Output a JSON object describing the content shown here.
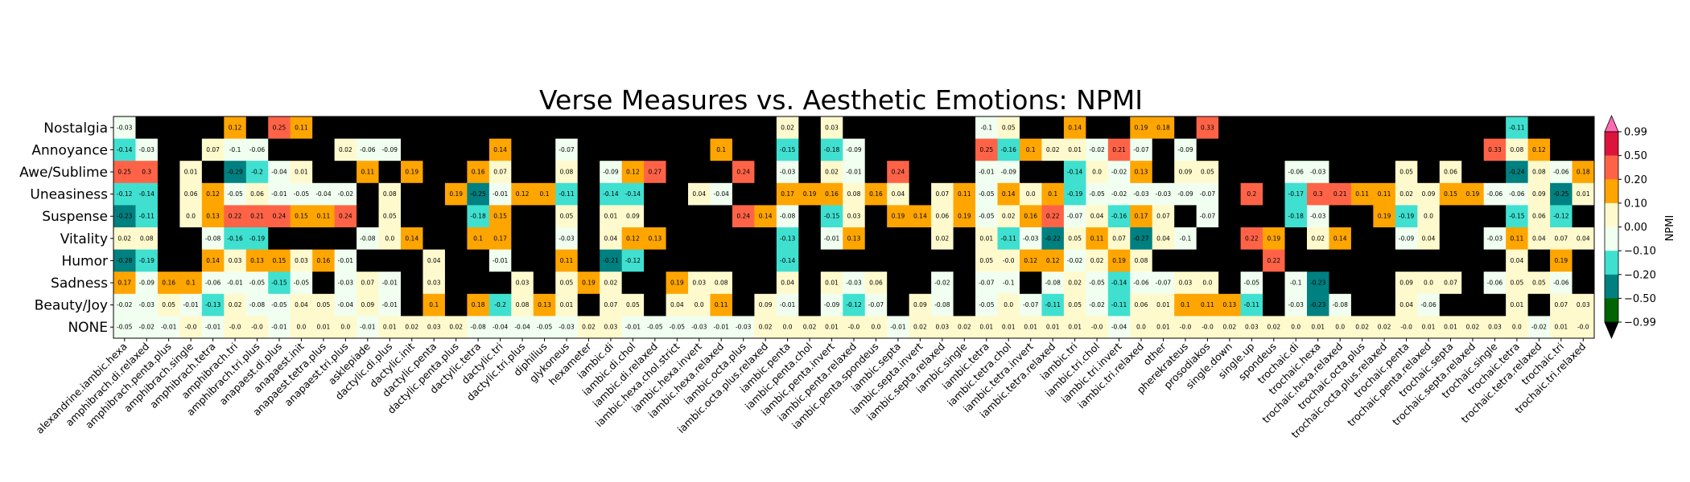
{
  "chart_data": {
    "type": "heatmap",
    "title": "Verse Measures vs. Aesthetic Emotions: NPMI",
    "colorbar_label": "NPMI",
    "colorbar_ticks": [
      "0.99",
      "0.50",
      "0.20",
      "0.10",
      "0.00",
      "−0.10",
      "−0.20",
      "−0.50",
      "−0.99"
    ],
    "colorbar_bounds": [
      -0.99,
      -0.5,
      -0.2,
      -0.1,
      0.0,
      0.1,
      0.2,
      0.5,
      0.99
    ],
    "colorbar_colors": [
      "#006400",
      "#008080",
      "#40E0D0",
      "#F0FFF0",
      "#FFFACD",
      "#FFA500",
      "#FF6347",
      "#DC143C"
    ],
    "colorbar_extend_colors": {
      "under": "#000000",
      "over": "#FF69B4"
    },
    "missing_color": "#000000",
    "rows": [
      "Nostalgia",
      "Annoyance",
      "Awe/Sublime",
      "Uneasiness",
      "Suspense",
      "Vitality",
      "Humor",
      "Sadness",
      "Beauty/Joy",
      "NONE"
    ],
    "columns": [
      "alexandrine.iambic.hexa",
      "amphibrach.di.relaxed",
      "amphibrach.penta.plus",
      "amphibrach.single",
      "amphibrach.tetra",
      "amphibrach.tri",
      "amphibrach.tri.plus",
      "anapaest.di.plus",
      "anapaest.init",
      "anapaest.tetra.plus",
      "anapaest.tri.plus",
      "asklepiade",
      "dactylic.di.plus",
      "dactylic.init",
      "dactylic.penta",
      "dactylic.penta.plus",
      "dactylic.tetra",
      "dactylic.tri",
      "dactylic.tri.plus",
      "diphilius",
      "glykoneus",
      "hexameter",
      "iambic.di",
      "iambic.di.chol",
      "iambic.di.relaxed",
      "iambic.hexa.chol.strict",
      "iambic.hexa.invert",
      "iambic.hexa.relaxed",
      "iambic.octa.plus",
      "iambic.octa.plus.relaxed",
      "iambic.penta",
      "iambic.penta.chol",
      "iambic.penta.invert",
      "iambic.penta.relaxed",
      "iambic.penta.spondeus",
      "iambic.septa",
      "iambic.septa.invert",
      "iambic.septa.relaxed",
      "iambic.single",
      "iambic.tetra",
      "iambic.tetra.chol",
      "iambic.tetra.invert",
      "iambic.tetra.relaxed",
      "iambic.tri",
      "iambic.tri.chol",
      "iambic.tri.invert",
      "iambic.tri.relaxed",
      "other",
      "pherekrateus",
      "prosodiakos",
      "single.down",
      "single.up",
      "spondeus",
      "trochaic.di",
      "trochaic.hexa",
      "trochaic.hexa.relaxed",
      "trochaic.octa.plus",
      "trochaic.octa.plus.relaxed",
      "trochaic.penta",
      "trochaic.penta.relaxed",
      "trochaic.septa",
      "trochaic.septa.relaxed",
      "trochaic.single",
      "trochaic.tetra",
      "trochaic.tetra.relaxed",
      "trochaic.tri",
      "trochaic.tri.relaxed"
    ],
    "values": [
      [
        -0.03,
        null,
        null,
        null,
        null,
        0.12,
        null,
        0.25,
        0.11,
        null,
        null,
        null,
        null,
        null,
        null,
        null,
        null,
        null,
        null,
        null,
        null,
        null,
        null,
        null,
        null,
        null,
        null,
        null,
        null,
        null,
        0.02,
        null,
        0.03,
        null,
        null,
        null,
        null,
        null,
        null,
        -0.1,
        0.05,
        null,
        null,
        0.14,
        null,
        null,
        0.19,
        0.18,
        null,
        0.33,
        null,
        null,
        null,
        null,
        null,
        null,
        null,
        null,
        null,
        null,
        null,
        null,
        null,
        -0.11,
        null,
        null,
        null
      ],
      [
        -0.14,
        -0.03,
        null,
        null,
        0.07,
        -0.1,
        -0.06,
        null,
        null,
        null,
        0.02,
        -0.06,
        -0.09,
        null,
        null,
        null,
        null,
        0.14,
        null,
        null,
        -0.07,
        null,
        null,
        null,
        null,
        null,
        null,
        0.1,
        null,
        null,
        -0.15,
        null,
        -0.18,
        -0.09,
        null,
        null,
        null,
        null,
        null,
        0.25,
        -0.16,
        0.1,
        0.02,
        0.01,
        -0.02,
        0.21,
        -0.07,
        null,
        -0.09,
        null,
        null,
        null,
        null,
        null,
        null,
        null,
        null,
        null,
        null,
        null,
        null,
        null,
        0.33,
        0.08,
        0.12,
        null,
        null
      ],
      [
        0.25,
        0.3,
        null,
        0.01,
        null,
        -0.29,
        -0.2,
        -0.04,
        0.01,
        null,
        null,
        0.11,
        null,
        0.19,
        null,
        null,
        0.16,
        0.07,
        null,
        null,
        0.08,
        null,
        -0.09,
        0.12,
        0.27,
        null,
        null,
        null,
        0.24,
        null,
        -0.03,
        null,
        0.02,
        -0.01,
        null,
        0.24,
        null,
        null,
        null,
        -0.01,
        -0.09,
        null,
        null,
        -0.14,
        0.0,
        -0.02,
        0.13,
        null,
        0.09,
        0.05,
        null,
        null,
        null,
        -0.06,
        -0.03,
        null,
        null,
        null,
        0.05,
        null,
        0.06,
        null,
        null,
        -0.24,
        0.08,
        -0.06,
        0.18
      ],
      [
        -0.12,
        -0.14,
        null,
        0.06,
        0.12,
        -0.05,
        0.06,
        -0.01,
        -0.05,
        -0.04,
        -0.02,
        null,
        0.08,
        null,
        null,
        0.19,
        -0.25,
        -0.01,
        0.12,
        0.1,
        -0.11,
        null,
        -0.14,
        -0.14,
        null,
        null,
        0.04,
        -0.04,
        null,
        null,
        0.17,
        0.19,
        0.16,
        0.08,
        0.16,
        0.04,
        null,
        0.07,
        0.11,
        -0.05,
        0.14,
        0.0,
        0.1,
        -0.19,
        -0.05,
        -0.02,
        -0.03,
        -0.03,
        -0.09,
        -0.07,
        null,
        0.2,
        null,
        -0.17,
        0.3,
        0.21,
        0.11,
        0.11,
        0.02,
        0.09,
        0.15,
        0.19,
        -0.06,
        -0.06,
        0.09,
        -0.25,
        0.01
      ],
      [
        -0.23,
        -0.11,
        null,
        0.0,
        0.13,
        0.22,
        0.21,
        0.24,
        0.15,
        0.11,
        0.24,
        null,
        0.05,
        null,
        null,
        null,
        -0.18,
        0.15,
        null,
        null,
        0.05,
        null,
        0.01,
        0.09,
        null,
        null,
        null,
        null,
        0.24,
        0.14,
        -0.08,
        null,
        -0.15,
        0.03,
        null,
        0.19,
        0.14,
        0.06,
        0.19,
        -0.05,
        0.02,
        0.16,
        0.22,
        -0.07,
        0.04,
        -0.16,
        0.17,
        0.07,
        null,
        -0.07,
        null,
        null,
        null,
        -0.18,
        -0.03,
        null,
        null,
        0.19,
        -0.19,
        0.0,
        null,
        null,
        null,
        -0.15,
        0.06,
        -0.12,
        null
      ],
      [
        0.02,
        0.08,
        null,
        null,
        -0.08,
        -0.16,
        -0.19,
        null,
        null,
        null,
        null,
        -0.08,
        0.0,
        0.14,
        null,
        null,
        0.1,
        0.17,
        null,
        null,
        -0.03,
        null,
        0.04,
        0.12,
        0.13,
        null,
        null,
        null,
        null,
        null,
        -0.13,
        null,
        -0.01,
        0.13,
        null,
        null,
        null,
        0.02,
        null,
        0.01,
        -0.11,
        -0.03,
        -0.22,
        0.05,
        0.11,
        0.07,
        -0.27,
        0.04,
        -0.1,
        null,
        null,
        0.22,
        0.19,
        null,
        0.02,
        0.14,
        null,
        null,
        -0.09,
        0.04,
        null,
        null,
        -0.03,
        0.11,
        0.04,
        0.07,
        0.04
      ],
      [
        -0.28,
        -0.19,
        null,
        null,
        0.14,
        0.03,
        0.13,
        0.15,
        0.03,
        0.16,
        -0.01,
        null,
        null,
        null,
        0.04,
        null,
        null,
        -0.01,
        null,
        null,
        0.11,
        null,
        -0.21,
        -0.12,
        null,
        null,
        null,
        null,
        null,
        null,
        -0.14,
        null,
        null,
        null,
        null,
        null,
        null,
        null,
        null,
        0.05,
        -0.0,
        0.12,
        0.12,
        -0.02,
        0.02,
        0.19,
        0.08,
        null,
        null,
        null,
        null,
        null,
        0.22,
        null,
        null,
        null,
        null,
        null,
        null,
        null,
        null,
        null,
        null,
        0.04,
        null,
        0.19,
        null
      ],
      [
        0.17,
        -0.09,
        0.16,
        0.1,
        -0.06,
        -0.01,
        -0.05,
        -0.15,
        -0.05,
        null,
        -0.03,
        0.07,
        -0.01,
        null,
        0.03,
        null,
        null,
        null,
        0.03,
        null,
        0.05,
        0.19,
        0.02,
        null,
        null,
        0.19,
        0.03,
        0.08,
        null,
        null,
        0.04,
        null,
        0.01,
        -0.03,
        0.06,
        null,
        null,
        -0.02,
        null,
        -0.07,
        -0.1,
        null,
        -0.08,
        0.02,
        -0.05,
        -0.14,
        -0.06,
        -0.07,
        0.03,
        0.0,
        null,
        -0.05,
        null,
        -0.1,
        -0.23,
        null,
        null,
        null,
        0.09,
        0.0,
        0.07,
        null,
        -0.06,
        0.05,
        0.05,
        -0.06,
        null
      ],
      [
        -0.02,
        -0.03,
        0.05,
        -0.01,
        -0.13,
        0.02,
        -0.08,
        -0.05,
        0.04,
        0.05,
        -0.04,
        0.09,
        -0.01,
        null,
        0.1,
        null,
        0.18,
        -0.2,
        0.08,
        0.13,
        0.01,
        null,
        0.07,
        0.05,
        null,
        0.04,
        0.0,
        0.11,
        null,
        0.09,
        -0.01,
        null,
        -0.09,
        -0.12,
        -0.07,
        null,
        0.09,
        -0.08,
        null,
        -0.05,
        0.0,
        -0.07,
        -0.11,
        0.05,
        -0.02,
        -0.11,
        0.06,
        0.01,
        0.1,
        0.11,
        0.13,
        -0.11,
        null,
        -0.03,
        -0.23,
        -0.08,
        null,
        null,
        0.04,
        -0.06,
        null,
        null,
        null,
        0.01,
        null,
        0.07,
        0.03
      ],
      [
        -0.05,
        -0.02,
        -0.01,
        -0.0,
        -0.01,
        -0.0,
        -0.0,
        -0.01,
        0.0,
        0.01,
        0.0,
        -0.01,
        0.01,
        0.02,
        0.03,
        0.02,
        -0.08,
        -0.04,
        -0.04,
        -0.05,
        -0.03,
        0.02,
        0.03,
        -0.01,
        -0.05,
        -0.05,
        -0.03,
        -0.01,
        -0.03,
        0.02,
        0.0,
        0.02,
        0.01,
        -0.0,
        0.0,
        -0.01,
        0.02,
        0.03,
        0.02,
        0.01,
        0.01,
        0.01,
        0.01,
        0.01,
        -0.0,
        -0.04,
        0.0,
        0.01,
        -0.0,
        -0.0,
        0.02,
        0.03,
        0.02,
        0.0,
        0.01,
        0.0,
        0.02,
        0.02,
        -0.0,
        0.01,
        0.01,
        0.02,
        0.03,
        0.0,
        -0.02,
        0.01,
        -0.0
      ]
    ]
  }
}
